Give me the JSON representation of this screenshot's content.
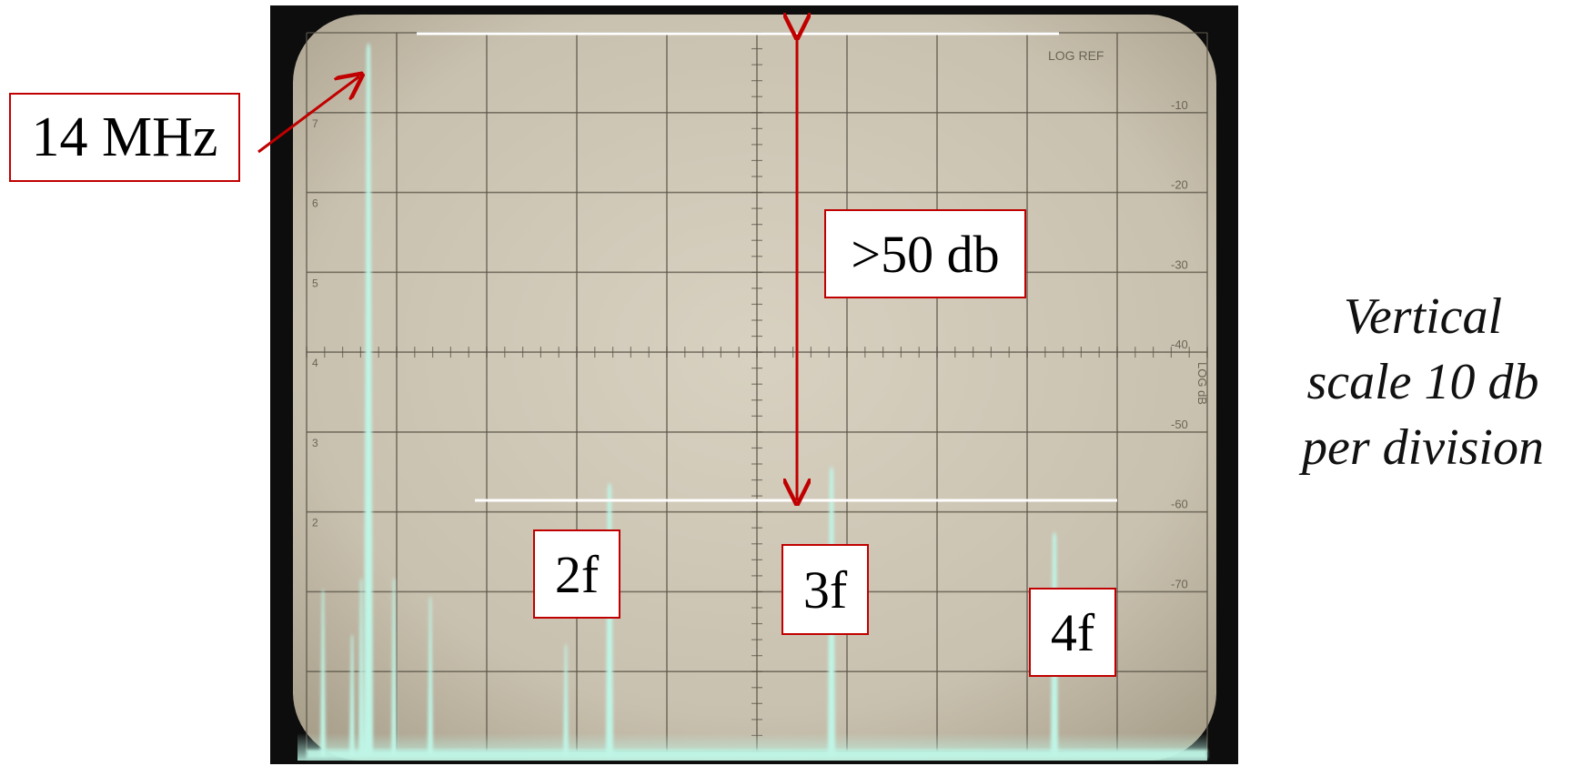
{
  "callouts": {
    "fundamental": "14 MHz",
    "range": ">50 db",
    "h2": "2f",
    "h3": "3f",
    "h4": "4f"
  },
  "note": {
    "line1": "Vertical",
    "line2": "scale 10 db",
    "line3": "per division"
  },
  "screen": {
    "log_ref": "LOG  REF",
    "right_ticks": [
      "-10",
      "-20",
      "-30",
      "-40",
      "-50",
      "-60",
      "-70"
    ],
    "left_ticks": [
      "7",
      "6",
      "5",
      "4",
      "3",
      "2"
    ]
  },
  "colors": {
    "callout_border": "#c00000",
    "arrow": "#c00000",
    "trace": "#bff5e6",
    "screen": "#cfc7b6",
    "graticule": "#5a5448",
    "reference_line": "#ffffff"
  },
  "spectrum": {
    "reference_db": 0,
    "db_per_division": 10,
    "peaks": [
      {
        "label": "14 MHz",
        "level_db": 0
      },
      {
        "label": "2f",
        "level_db": -54
      },
      {
        "label": "3f",
        "level_db": -52
      },
      {
        "label": "4f",
        "level_db": -60
      }
    ],
    "harmonic_suppression_db": 50
  }
}
